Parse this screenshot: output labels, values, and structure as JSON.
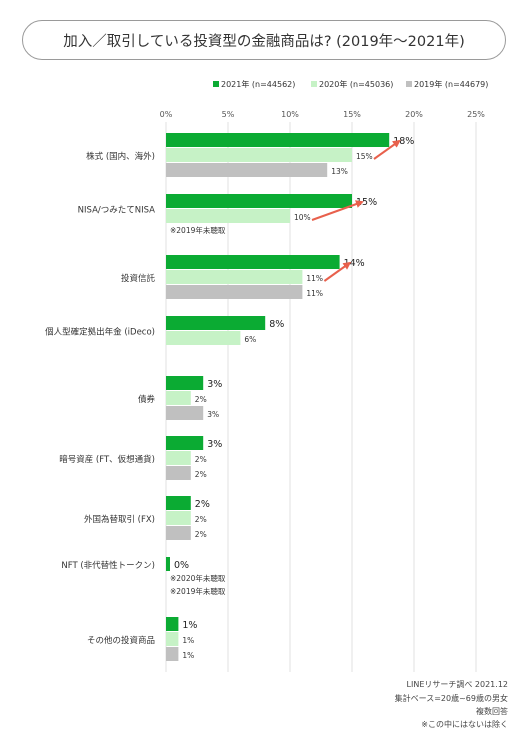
{
  "chart_data": {
    "type": "bar",
    "orientation": "horizontal",
    "title": "加入／取引している投資型の金融商品は? (2019年〜2021年)",
    "categories": [
      "株式 (国内、海外)",
      "NISA/つみたてNISA",
      "投資信託",
      "個人型確定拠出年金 (iDeco)",
      "債券",
      "暗号資産 (FT、仮想通貨)",
      "外国為替取引 (FX)",
      "NFT (非代替性トークン)",
      "その他の投資商品"
    ],
    "series": [
      {
        "name": "2021年 (n=44562)",
        "color": "#0bab33",
        "values": [
          18,
          15,
          14,
          8,
          3,
          3,
          2,
          0,
          1
        ],
        "labels": [
          "18%",
          "15%",
          "14%",
          "8%",
          "3%",
          "3%",
          "2%",
          "0%",
          "1%"
        ]
      },
      {
        "name": "2020年 (n=45036)",
        "color": "#c6f2c6",
        "values": [
          15,
          10,
          11,
          6,
          2,
          2,
          2,
          null,
          1
        ],
        "labels": [
          "15%",
          "10%",
          "11%",
          "6%",
          "2%",
          "2%",
          "2%",
          "",
          "1%"
        ]
      },
      {
        "name": "2019年 (n=44679)",
        "color": "#c0c0c0",
        "values": [
          13,
          null,
          11,
          null,
          3,
          2,
          2,
          null,
          1
        ],
        "labels": [
          "13%",
          "",
          "11%",
          "",
          "3%",
          "2%",
          "2%",
          "",
          "1%"
        ]
      }
    ],
    "xlim": [
      0,
      25
    ],
    "xticks": [
      0,
      5,
      10,
      15,
      20,
      25
    ],
    "xtick_labels": [
      "0%",
      "5%",
      "10%",
      "15%",
      "20%",
      "25%"
    ],
    "grid": true,
    "legend_position": "top-right",
    "notes": [
      {
        "category_index": 1,
        "lines": [
          "※2019年未聴取"
        ]
      },
      {
        "category_index": 7,
        "lines": [
          "※2020年未聴取",
          "※2019年未聴取"
        ]
      }
    ],
    "growth_arrows": [
      0,
      1,
      2
    ],
    "arrow_color": "#e8604c"
  },
  "footer": {
    "source": "LINEリサーチ調べ 2021.12",
    "base": "集計ベース=20歳~69歳の男女",
    "answer_type": "複数回答",
    "note": "※この中にはないは除く"
  }
}
